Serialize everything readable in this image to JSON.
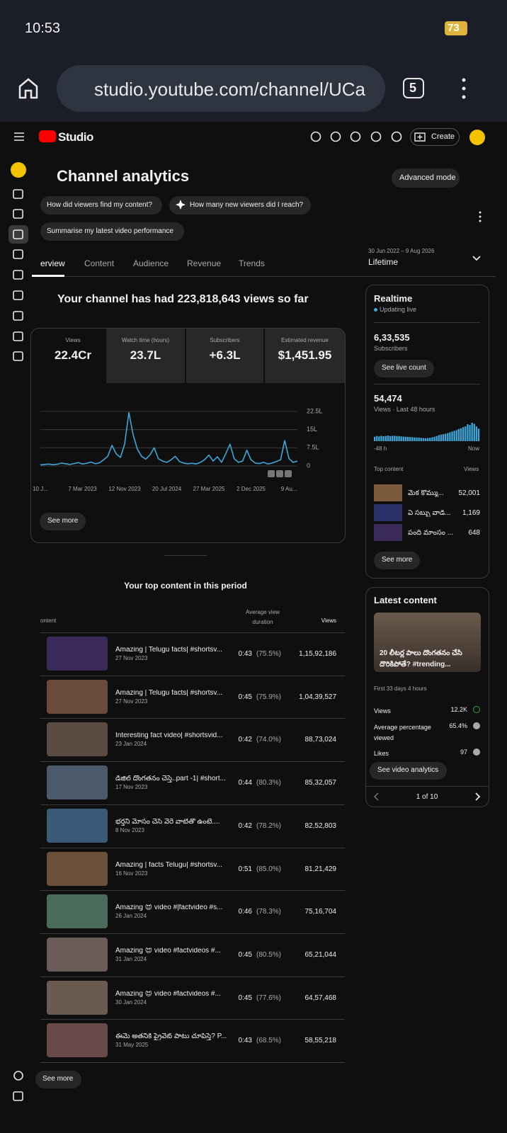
{
  "status_bar": {
    "time": "10:53",
    "battery": "73"
  },
  "browser": {
    "url": "studio.youtube.com/channel/UCa",
    "tab_count": "5"
  },
  "header": {
    "logo": "Studio",
    "create": "Create"
  },
  "page": {
    "title": "Channel analytics",
    "advanced_mode": "Advanced mode",
    "chips": [
      "How did viewers find my content?",
      "How many new viewers did I reach?",
      "Summarise my latest video performance"
    ],
    "tabs": [
      "erview",
      "Content",
      "Audience",
      "Revenue",
      "Trends"
    ],
    "date_range": "30 Jun 2022 – 9 Aug 2026",
    "period": "Lifetime"
  },
  "overview": {
    "headline": "Your channel has had 223,818,643 views so far",
    "metrics": [
      {
        "label": "Views",
        "value": "22.4Cr"
      },
      {
        "label": "Watch time (hours)",
        "value": "23.7L"
      },
      {
        "label": "Subscribers",
        "value": "+6.3L"
      },
      {
        "label": "Estimated revenue",
        "value": "$1,451.95"
      }
    ],
    "see_more": "See more"
  },
  "chart_data": {
    "type": "line",
    "color": "#3ea6d8",
    "categories": [
      "10 J...",
      null,
      null,
      null,
      null,
      null,
      null,
      null,
      null,
      null,
      "7 Mar 2023",
      null,
      null,
      null,
      null,
      null,
      null,
      null,
      null,
      null,
      "12 Nov 2023",
      null,
      null,
      null,
      null,
      null,
      null,
      null,
      null,
      null,
      "20 Jul 2024",
      null,
      null,
      null,
      null,
      null,
      null,
      null,
      null,
      null,
      "27 Mar 2025",
      null,
      null,
      null,
      null,
      null,
      null,
      null,
      null,
      null,
      "2 Dec 2025",
      null,
      null,
      null,
      null,
      null,
      null,
      null,
      null,
      "9 Au...",
      null,
      null
    ],
    "values": [
      0.4,
      0.6,
      0.8,
      0.5,
      0.7,
      1.2,
      0.9,
      0.6,
      1.0,
      1.4,
      0.8,
      1.1,
      1.6,
      0.9,
      1.3,
      2.5,
      4,
      8.5,
      5,
      3.5,
      9,
      22,
      13,
      7,
      4,
      2.8,
      4.5,
      7.5,
      3,
      2,
      1.5,
      2.5,
      4,
      1.8,
      1.2,
      0.9,
      1.1,
      0.8,
      1.5,
      2.6,
      4.5,
      2,
      3.8,
      1.5,
      5,
      9,
      3,
      1.5,
      2,
      6.5,
      2.5,
      1.2,
      1,
      1.5,
      0.8,
      1.2,
      1.8,
      2.5,
      10.5,
      3,
      1.5,
      2
    ],
    "ylim": [
      0,
      22.5
    ],
    "yticks": [
      0,
      {
        "value": 7.5,
        "label": "7.5L"
      },
      {
        "value": 15,
        "label": "15L"
      },
      {
        "value": 22.5,
        "label": "22.5L"
      }
    ],
    "grid": true
  },
  "realtime": {
    "title": "Realtime",
    "status": "Updating live",
    "subscribers": "6,33,535",
    "subscribers_label": "Subscribers",
    "live_count": "See live count",
    "views": "54,474",
    "views_label": "Views · Last 48 hours",
    "bars": [
      600,
      700,
      650,
      720,
      680,
      700,
      760,
      690,
      720,
      740,
      700,
      680,
      650,
      620,
      600,
      580,
      560,
      540,
      520,
      500,
      480,
      450,
      420,
      400,
      420,
      460,
      520,
      600,
      700,
      820,
      900,
      950,
      1000,
      1100,
      1200,
      1300,
      1400,
      1500,
      1650,
      1750,
      1900,
      2000,
      2300,
      2200,
      2500,
      2350,
      2000,
      1700
    ],
    "bars_color": "#3ea6d8",
    "start": "-48 h",
    "end": "Now",
    "top_content": "Top content",
    "views_header": "Views",
    "items": [
      {
        "title": "మేక కొమ్ము...",
        "views": "52,001"
      },
      {
        "title": "ఏ సబ్బు వాడి...",
        "views": "1,169"
      },
      {
        "title": "పంది మాంసం ...",
        "views": "648"
      }
    ],
    "see_more": "See more"
  },
  "latest": {
    "title": "Latest content",
    "video_title": "20 లీటర్ల పాలు దొంగతనం చేసి దొరికిపోతే? #trending...",
    "period": "First 33 days 4 hours",
    "stats": [
      {
        "label": "Views",
        "value": "12.2K"
      },
      {
        "label": "Average percentage viewed",
        "value": "65.4%"
      },
      {
        "label": "Likes",
        "value": "97"
      }
    ],
    "button": "See video analytics",
    "pager": "1 of 10"
  },
  "top_content": {
    "title": "Your top content in this period",
    "headers": [
      "ontent",
      "Average view duration",
      "Views"
    ],
    "rows": [
      {
        "title": "Amazing | Telugu facts| #shortsv...",
        "date": "27 Nov 2023",
        "duration": "0:43",
        "percent": "(75.5%)",
        "views": "1,15,92,186"
      },
      {
        "title": "Amazing | Telugu facts| #shortsv...",
        "date": "27 Nov 2023",
        "duration": "0:45",
        "percent": "(75.9%)",
        "views": "1,04,39,527"
      },
      {
        "title": "Interesting fact video| #shortsvid...",
        "date": "23 Jan 2024",
        "duration": "0:42",
        "percent": "(74.0%)",
        "views": "88,73,024"
      },
      {
        "title": "డీజిల్ దొంగతనం చేస్తే..part -1| #short...",
        "date": "17 Nov 2023",
        "duration": "0:44",
        "percent": "(80.3%)",
        "views": "85,32,057"
      },
      {
        "title": "భర్తని మోసం చేసి వేరే వాటితో ఉంటే....",
        "date": "8 Nov 2023",
        "duration": "0:42",
        "percent": "(78.2%)",
        "views": "82,52,803"
      },
      {
        "title": "Amazing | facts Telugu| #shortsv...",
        "date": "16 Nov 2023",
        "duration": "0:51",
        "percent": "(85.0%)",
        "views": "81,21,429"
      },
      {
        "title": "Amazing 😍 video #|factvideo #s...",
        "date": "26 Jan 2024",
        "duration": "0:46",
        "percent": "(78.3%)",
        "views": "75,16,704"
      },
      {
        "title": "Amazing 😍 video #factvideos #...",
        "date": "31 Jan 2024",
        "duration": "0:45",
        "percent": "(80.5%)",
        "views": "65,21,044"
      },
      {
        "title": "Amazing 😍 video #factvideos #...",
        "date": "30 Jan 2024",
        "duration": "0:45",
        "percent": "(77.6%)",
        "views": "64,57,468"
      },
      {
        "title": "ఈమె అతనికి ప్రైవేట్ పాటు చూపిస్తే? P...",
        "date": "31 May 2025",
        "duration": "0:43",
        "percent": "(68.5%)",
        "views": "58,55,218"
      }
    ],
    "see_more": "See more"
  }
}
